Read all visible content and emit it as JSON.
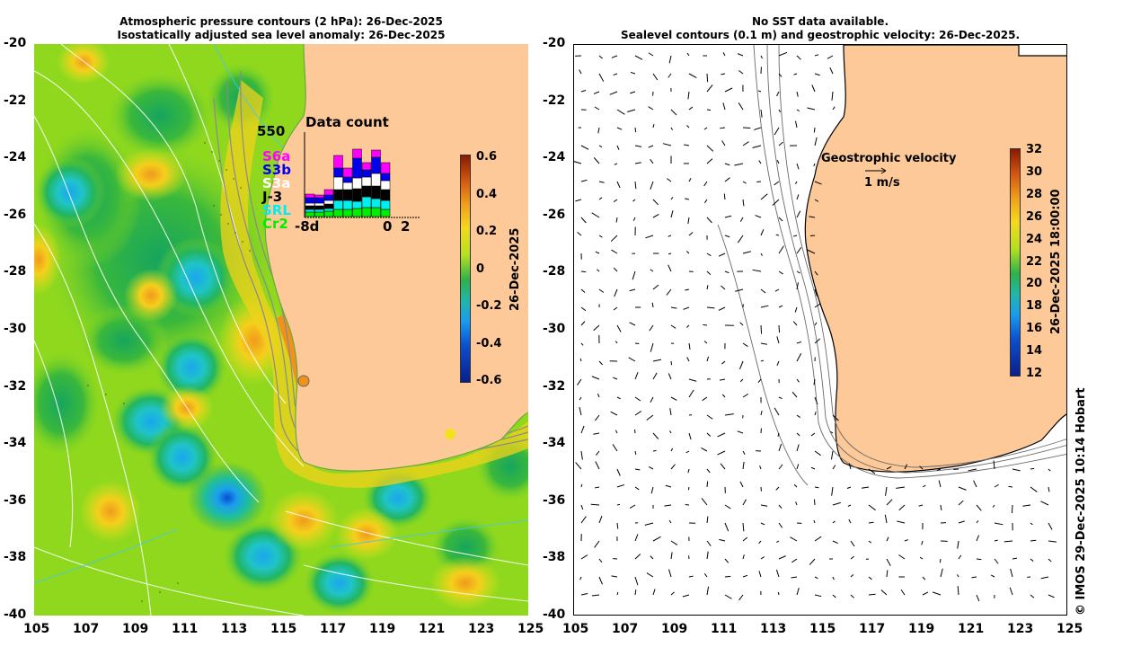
{
  "left_panel": {
    "title_line1": "Atmospheric pressure contours (2 hPa): 26-Dec-2025",
    "title_line2": "Isostatically adjusted sea level anomaly: 26-Dec-2025",
    "y_ticks": [
      "-20",
      "-22",
      "-24",
      "-26",
      "-28",
      "-30",
      "-32",
      "-34",
      "-36",
      "-38",
      "-40"
    ],
    "x_ticks": [
      "105",
      "107",
      "109",
      "111",
      "113",
      "115",
      "117",
      "119",
      "121",
      "123",
      "125"
    ],
    "colorbar": {
      "label": "26-Dec-2025",
      "ticks": [
        "0.6",
        "0.4",
        "0.2",
        "0",
        "-0.2",
        "-0.4",
        "-0.6"
      ]
    },
    "data_count": {
      "title": "Data count",
      "max_label": "550",
      "x_start": "-8d",
      "x_zero": "0",
      "x_end": "2",
      "legend": [
        {
          "label": "S6a",
          "color": "#ff00ff"
        },
        {
          "label": "S3b",
          "color": "#0000ee"
        },
        {
          "label": "S3a",
          "color": "#ffffff"
        },
        {
          "label": "J-3",
          "color": "#000000"
        },
        {
          "label": "SRL",
          "color": "#00eeee"
        },
        {
          "label": "Cr2",
          "color": "#00ee00"
        }
      ]
    }
  },
  "right_panel": {
    "title_line1": "No SST data available.",
    "title_line2": "Sealevel contours (0.1 m) and geostrophic velocity: 26-Dec-2025.",
    "y_ticks": [
      "-20",
      "-22",
      "-24",
      "-26",
      "-28",
      "-30",
      "-32",
      "-34",
      "-36",
      "-38",
      "-40"
    ],
    "x_ticks": [
      "105",
      "107",
      "109",
      "111",
      "113",
      "115",
      "117",
      "119",
      "121",
      "123",
      "125"
    ],
    "velocity_label": "Geostrophic velocity",
    "velocity_scale": "1 m/s",
    "colorbar": {
      "label": "26-Dec-2025 18:00:00",
      "ticks": [
        "32",
        "30",
        "28",
        "26",
        "24",
        "22",
        "20",
        "18",
        "16",
        "14",
        "12"
      ]
    }
  },
  "credit": "© IMOS 29-Dec-2025 10:14 Hobart",
  "colors": {
    "land": "#fdc998",
    "ocean_base": "#9ade1e",
    "coast_line": "#808080"
  }
}
